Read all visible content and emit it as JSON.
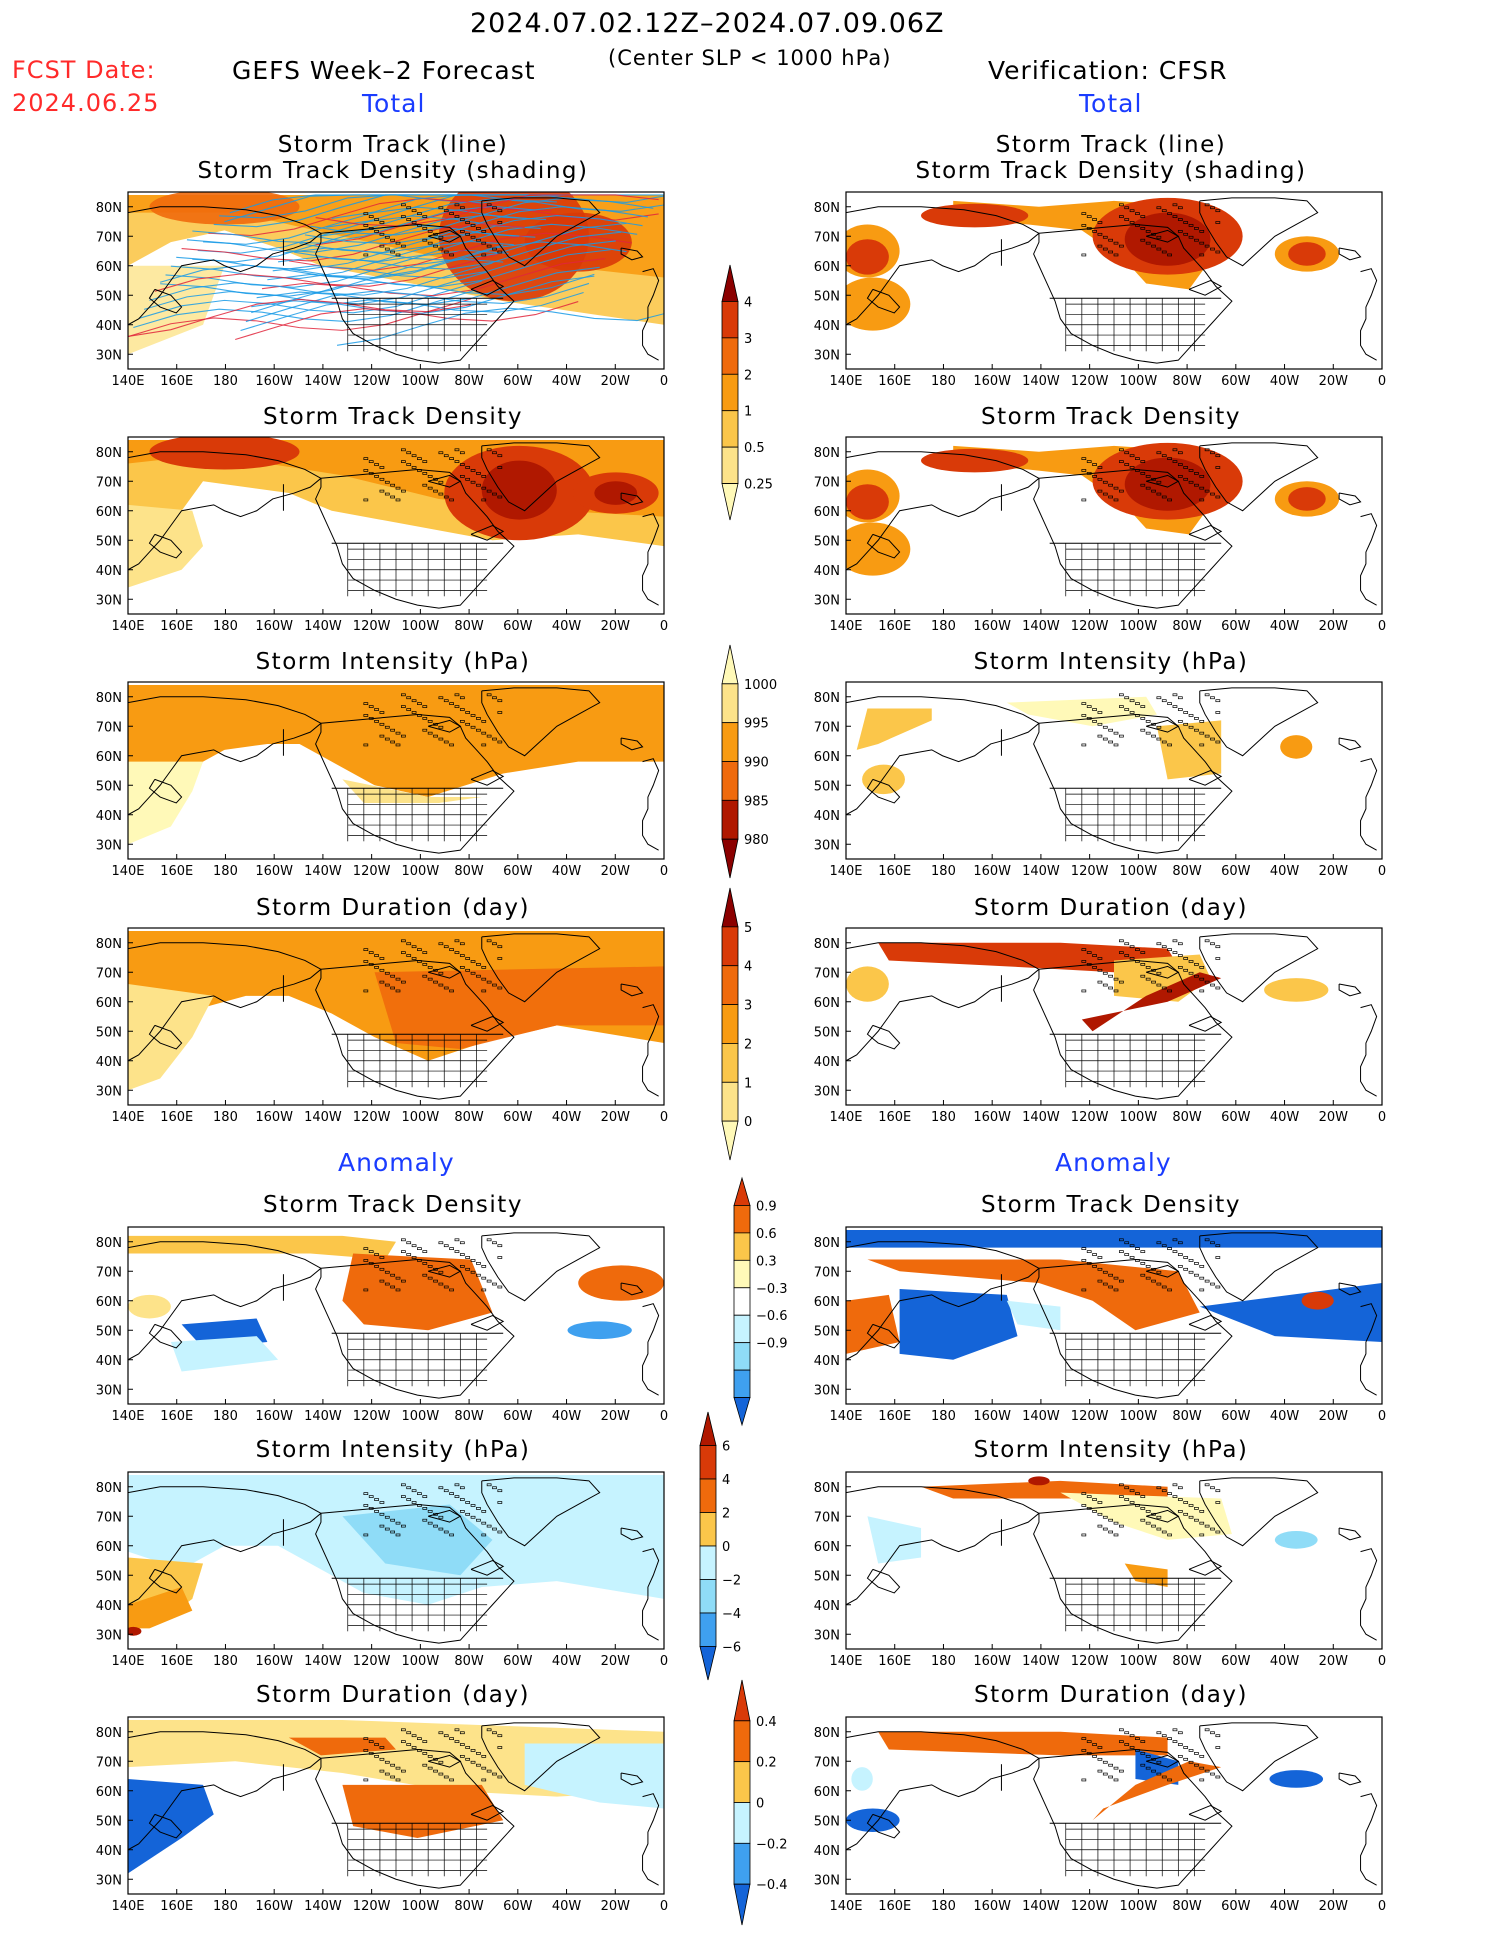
{
  "header": {
    "date_range": "2024.07.02.12Z–2024.07.09.06Z",
    "criterion": "(Center SLP < 1000 hPa)",
    "fcst_label": "FCST Date:",
    "fcst_date": "2024.06.25",
    "left_title": "GEFS Week–2 Forecast",
    "right_title": "Verification: CFSR"
  },
  "sections": {
    "total": "Total",
    "anomaly": "Anomaly"
  },
  "panel_titles": {
    "track_line": "Storm Track (line)",
    "track_density_shading": "Storm Track Density (shading)",
    "density": "Storm Track Density",
    "intensity": "Storm Intensity (hPa)",
    "duration": "Storm Duration (day)"
  },
  "axes": {
    "lat": [
      "80N",
      "70N",
      "60N",
      "50N",
      "40N",
      "30N"
    ],
    "lon": [
      "140E",
      "160E",
      "180",
      "160W",
      "140W",
      "120W",
      "100W",
      "80W",
      "60W",
      "40W",
      "20W",
      "0"
    ]
  },
  "colorbars": {
    "density_total": [
      "4",
      "3",
      "2",
      "1",
      "0.5",
      "0.25"
    ],
    "intensity_total": [
      "1000",
      "995",
      "990",
      "985",
      "980"
    ],
    "duration_total": [
      "5",
      "4",
      "3",
      "2",
      "1",
      "0"
    ],
    "density_anom": [
      "0.9",
      "0.6",
      "0.3",
      "−0.3",
      "−0.6",
      "−0.9"
    ],
    "intensity_anom": [
      "6",
      "4",
      "2",
      "0",
      "−2",
      "−4",
      "−6"
    ],
    "duration_anom": [
      "0.4",
      "0.2",
      "0",
      "−0.2",
      "−0.4"
    ]
  },
  "colors": {
    "background": "#ffffff",
    "header_red": "#ff2a2a",
    "section_blue": "#1a3cff",
    "warm_scale": [
      "#fff9b8",
      "#fde38a",
      "#fbc64a",
      "#f89b12",
      "#ef6a0c",
      "#d93a08",
      "#b01800",
      "#8b0000"
    ],
    "cool_scale": [
      "#c6f3ff",
      "#8fdcf7",
      "#3fa0ef",
      "#1464d8"
    ],
    "track_blue": "#1a9be6",
    "track_red": "#e0263c"
  }
}
